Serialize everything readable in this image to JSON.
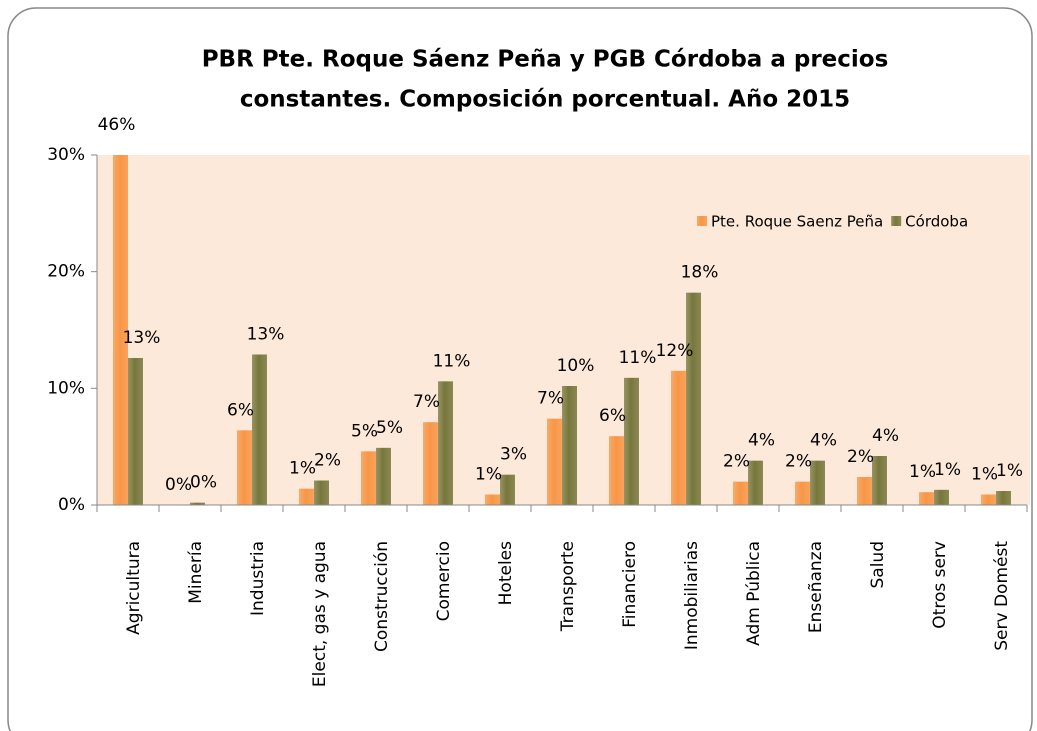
{
  "chart_data": {
    "type": "bar",
    "title": [
      "PBR Pte. Roque Sáenz Peña y PGB Córdoba a precios",
      "constantes. Composición porcentual. Año 2015"
    ],
    "categories": [
      "Agricultura",
      "Minería",
      "Industria",
      "Elect, gas y agua",
      "Construcción",
      "Comercio",
      "Hoteles",
      "Transporte",
      "Financiero",
      "Inmobiliarias",
      "Adm Pública",
      "Enseñanza",
      "Salud",
      "Otros serv",
      "Serv Domést"
    ],
    "series": [
      {
        "name": "Pte. Roque Saenz Peña",
        "color": "#f79646",
        "values": [
          46,
          0,
          6.4,
          1.4,
          4.6,
          7.1,
          0.9,
          7.4,
          5.9,
          11.5,
          2.0,
          2.0,
          2.4,
          1.1,
          0.9
        ],
        "value_labels": [
          "46%",
          "0%",
          "6%",
          "1%",
          "5%",
          "7%",
          "1%",
          "7%",
          "6%",
          "12%",
          "2%",
          "2%",
          "2%",
          "1%",
          "1%"
        ]
      },
      {
        "name": "Córdoba",
        "color": "#77773c",
        "values": [
          12.6,
          0.2,
          12.9,
          2.1,
          4.9,
          10.6,
          2.6,
          10.2,
          10.9,
          18.2,
          3.8,
          3.8,
          4.2,
          1.3,
          1.2
        ],
        "value_labels": [
          "13%",
          "0%",
          "13%",
          "2%",
          "5%",
          "11%",
          "3%",
          "10%",
          "11%",
          "18%",
          "4%",
          "4%",
          "4%",
          "1%",
          "1%"
        ]
      }
    ],
    "ylim": [
      0,
      30
    ],
    "yticks": [
      {
        "value": 0,
        "label": "0%"
      },
      {
        "value": 10,
        "label": "10%"
      },
      {
        "value": 20,
        "label": "20%"
      },
      {
        "value": 30,
        "label": "30%"
      }
    ],
    "legend": "right"
  }
}
